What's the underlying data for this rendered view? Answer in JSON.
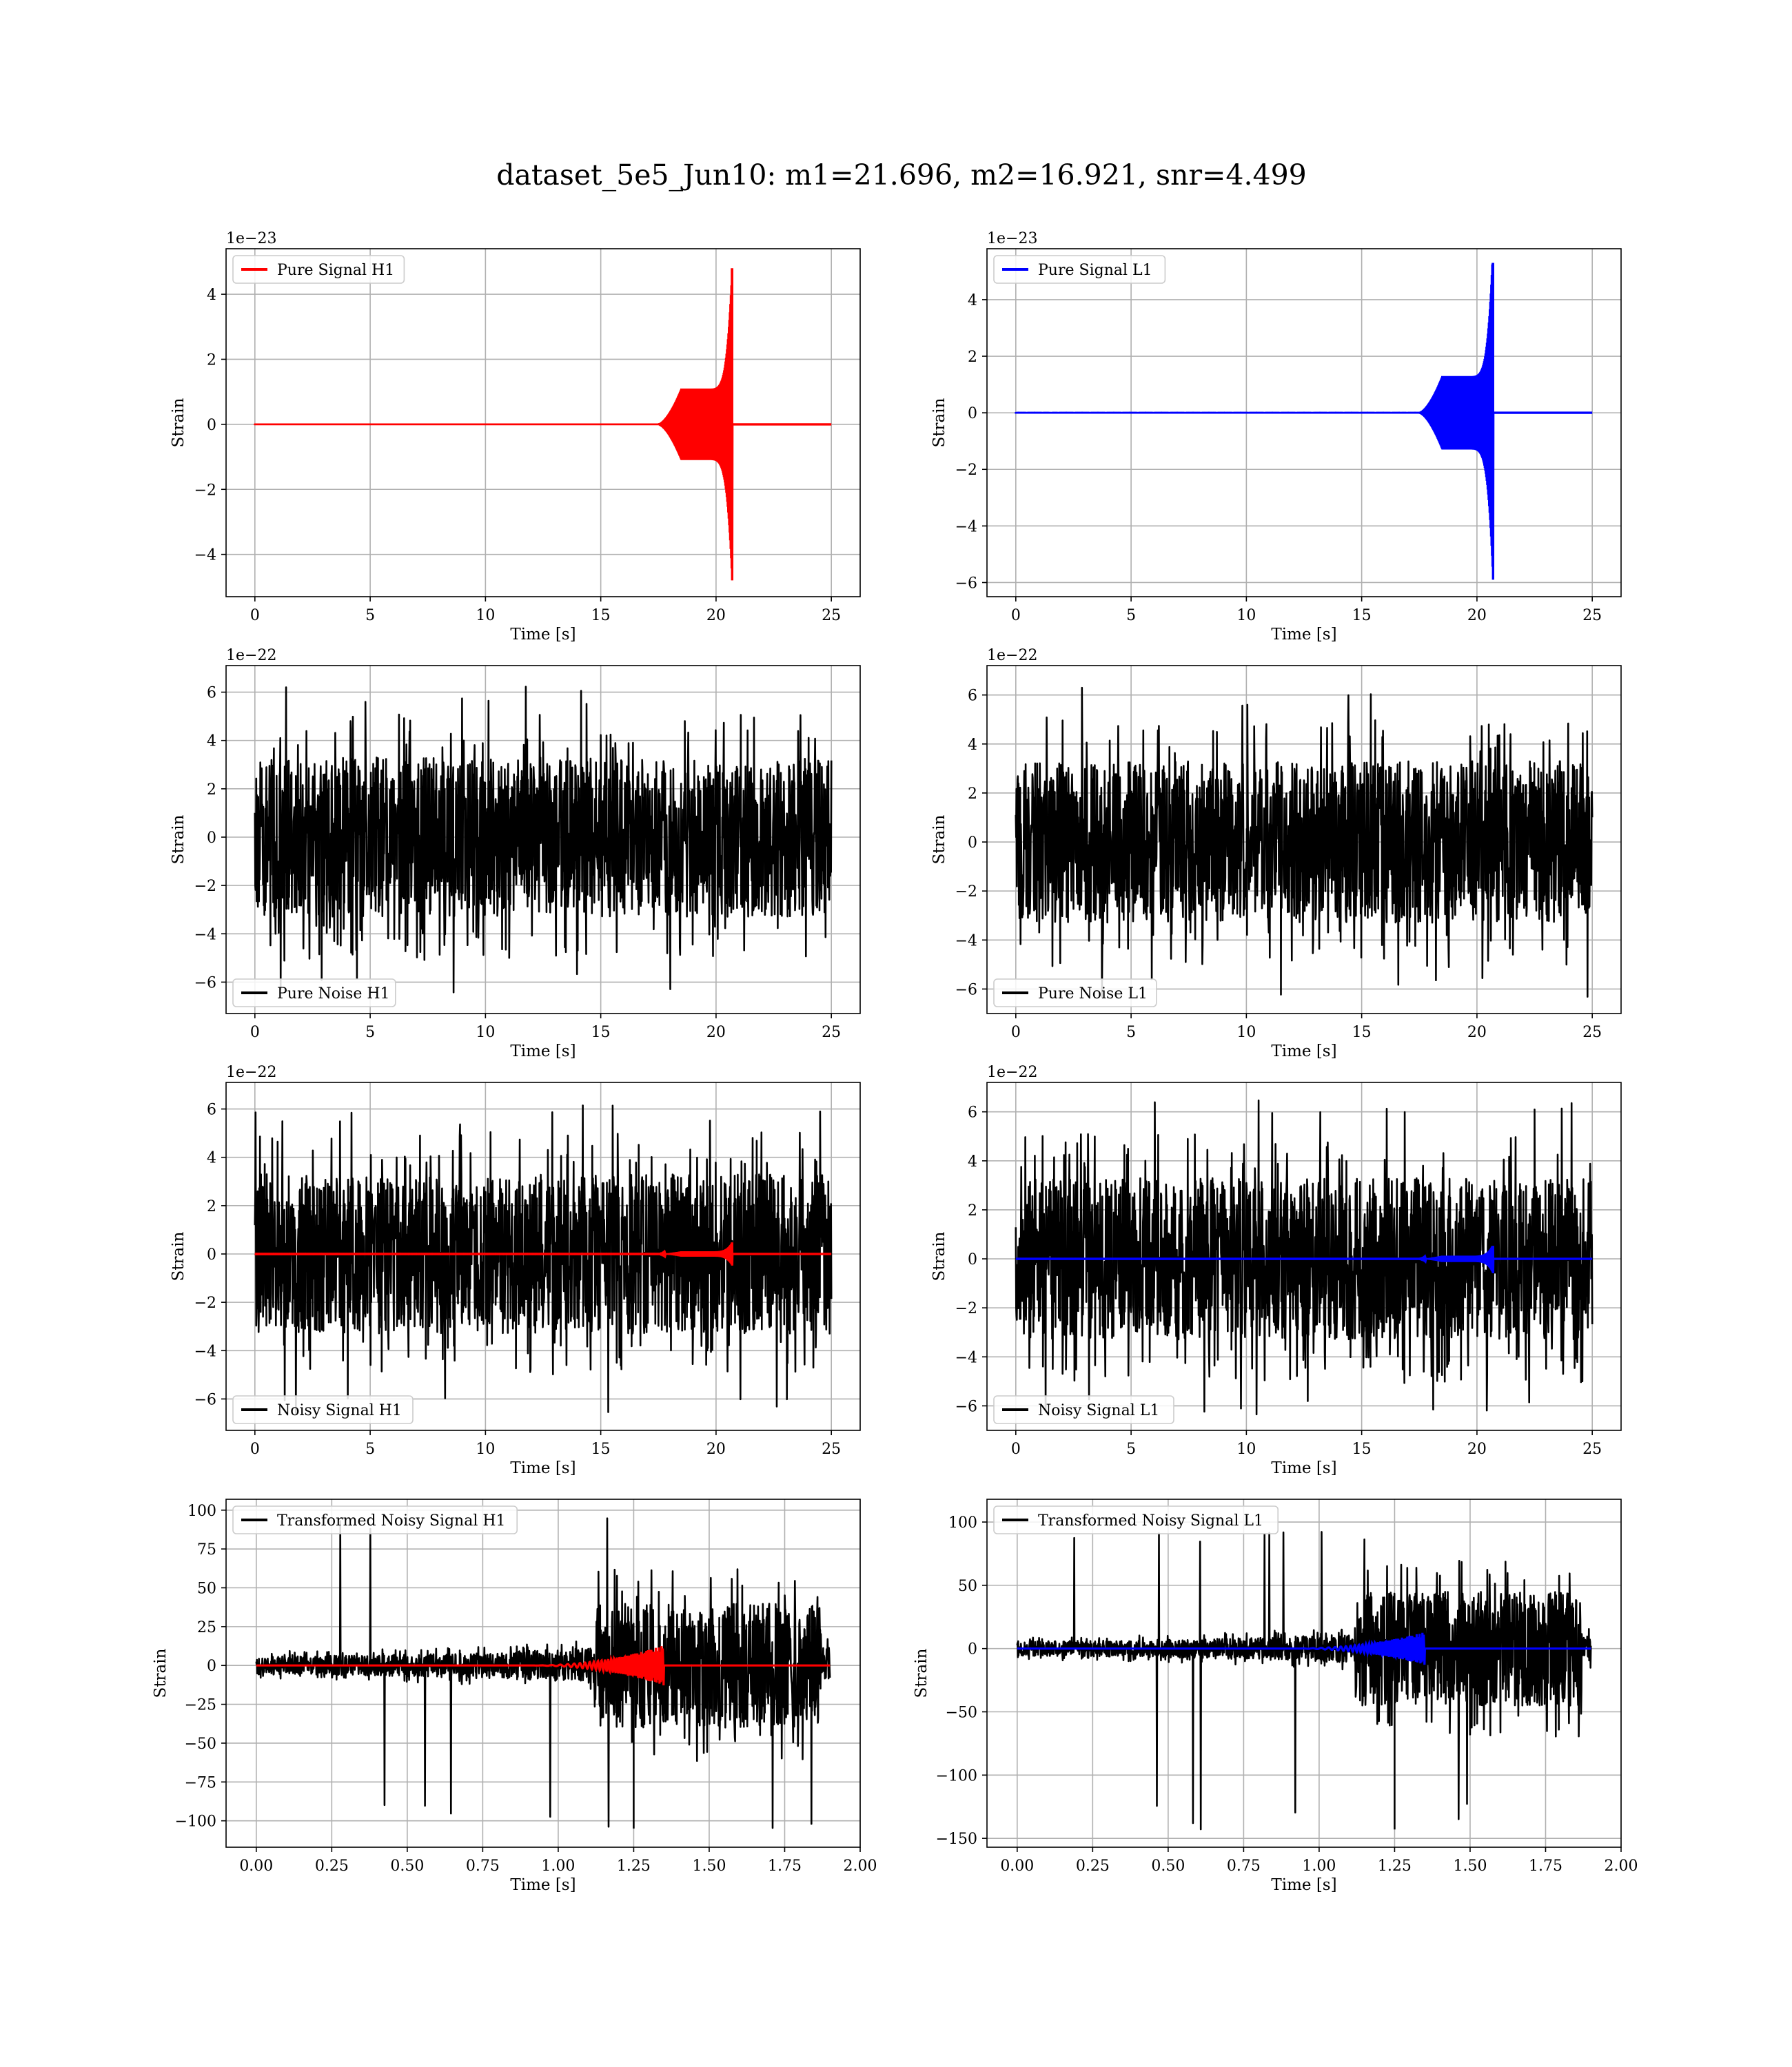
{
  "figure": {
    "title": "dataset_5e5_Jun10: m1=21.696, m2=16.921, snr=4.499"
  },
  "chart_data": [
    {
      "type": "line",
      "id": "pure-signal-h1",
      "xlabel": "Time [s]",
      "ylabel": "Strain",
      "offset_text": "1e−23",
      "xlim": [
        -1.25,
        26.25
      ],
      "ylim": [
        -5.3,
        5.4
      ],
      "xticks": [
        0,
        5,
        10,
        15,
        20,
        25
      ],
      "xtick_labels": [
        "0",
        "5",
        "10",
        "15",
        "20",
        "25"
      ],
      "yticks": [
        -4,
        -2,
        0,
        2,
        4
      ],
      "ytick_labels": [
        "−4",
        "−2",
        "0",
        "2",
        "4"
      ],
      "legend": "top-left",
      "grid": true,
      "series": [
        {
          "name": "Pure Signal H1",
          "color": "#ff0000",
          "kind": "chirp",
          "t_start": 0,
          "t_end": 25,
          "t_merger": 20.7,
          "peak_pos": 4.8,
          "peak_neg": -4.8,
          "onset": 17.5,
          "plateau_amp": 1.1
        }
      ]
    },
    {
      "type": "line",
      "id": "pure-signal-l1",
      "xlabel": "Time [s]",
      "ylabel": "Strain",
      "offset_text": "1e−23",
      "xlim": [
        -1.25,
        26.25
      ],
      "ylim": [
        -6.5,
        5.8
      ],
      "xticks": [
        0,
        5,
        10,
        15,
        20,
        25
      ],
      "xtick_labels": [
        "0",
        "5",
        "10",
        "15",
        "20",
        "25"
      ],
      "yticks": [
        -6,
        -4,
        -2,
        0,
        2,
        4
      ],
      "ytick_labels": [
        "−6",
        "−4",
        "−2",
        "0",
        "2",
        "4"
      ],
      "legend": "top-left",
      "grid": true,
      "series": [
        {
          "name": "Pure Signal L1",
          "color": "#0000ff",
          "kind": "chirp",
          "t_start": 0,
          "t_end": 25,
          "t_merger": 20.7,
          "peak_pos": 5.3,
          "peak_neg": -5.9,
          "onset": 17.5,
          "plateau_amp": 1.3
        }
      ]
    },
    {
      "type": "line",
      "id": "pure-noise-h1",
      "xlabel": "Time [s]",
      "ylabel": "Strain",
      "offset_text": "1e−22",
      "xlim": [
        -1.25,
        26.25
      ],
      "ylim": [
        -7.3,
        7.1
      ],
      "xticks": [
        0,
        5,
        10,
        15,
        20,
        25
      ],
      "xtick_labels": [
        "0",
        "5",
        "10",
        "15",
        "20",
        "25"
      ],
      "yticks": [
        -6,
        -4,
        -2,
        0,
        2,
        4,
        6
      ],
      "ytick_labels": [
        "−6",
        "−4",
        "−2",
        "0",
        "2",
        "4",
        "6"
      ],
      "legend": "bottom-left",
      "grid": true,
      "series": [
        {
          "name": "Pure Noise H1",
          "color": "#000000",
          "kind": "noise",
          "t_start": 0,
          "t_end": 25,
          "band": 3.3,
          "spike_max": 6.3,
          "spike_min": -6.6
        }
      ]
    },
    {
      "type": "line",
      "id": "pure-noise-l1",
      "xlabel": "Time [s]",
      "ylabel": "Strain",
      "offset_text": "1e−22",
      "xlim": [
        -1.25,
        26.25
      ],
      "ylim": [
        -7.0,
        7.2
      ],
      "xticks": [
        0,
        5,
        10,
        15,
        20,
        25
      ],
      "xtick_labels": [
        "0",
        "5",
        "10",
        "15",
        "20",
        "25"
      ],
      "yticks": [
        -6,
        -4,
        -2,
        0,
        2,
        4,
        6
      ],
      "ytick_labels": [
        "−6",
        "−4",
        "−2",
        "0",
        "2",
        "4",
        "6"
      ],
      "legend": "bottom-left",
      "grid": true,
      "series": [
        {
          "name": "Pure Noise L1",
          "color": "#000000",
          "kind": "noise",
          "t_start": 0,
          "t_end": 25,
          "band": 3.3,
          "spike_max": 6.5,
          "spike_min": -6.5
        }
      ]
    },
    {
      "type": "line",
      "id": "noisy-signal-h1",
      "xlabel": "Time [s]",
      "ylabel": "Strain",
      "offset_text": "1e−22",
      "xlim": [
        -1.25,
        26.25
      ],
      "ylim": [
        -7.3,
        7.1
      ],
      "xticks": [
        0,
        5,
        10,
        15,
        20,
        25
      ],
      "xtick_labels": [
        "0",
        "5",
        "10",
        "15",
        "20",
        "25"
      ],
      "yticks": [
        -6,
        -4,
        -2,
        0,
        2,
        4,
        6
      ],
      "ytick_labels": [
        "−6",
        "−4",
        "−2",
        "0",
        "2",
        "4",
        "6"
      ],
      "legend": "bottom-left",
      "grid": true,
      "series": [
        {
          "name": "Noisy Signal H1",
          "color": "#000000",
          "kind": "noise",
          "t_start": 0,
          "t_end": 25,
          "band": 3.3,
          "spike_max": 6.3,
          "spike_min": -6.6
        },
        {
          "color": "#ff0000",
          "kind": "chirp",
          "t_start": 0,
          "t_end": 25,
          "t_merger": 20.7,
          "peak_pos": 0.48,
          "peak_neg": -0.48,
          "onset": 17.5,
          "plateau_amp": 0.11
        }
      ]
    },
    {
      "type": "line",
      "id": "noisy-signal-l1",
      "xlabel": "Time [s]",
      "ylabel": "Strain",
      "offset_text": "1e−22",
      "xlim": [
        -1.25,
        26.25
      ],
      "ylim": [
        -7.0,
        7.2
      ],
      "xticks": [
        0,
        5,
        10,
        15,
        20,
        25
      ],
      "xtick_labels": [
        "0",
        "5",
        "10",
        "15",
        "20",
        "25"
      ],
      "yticks": [
        -6,
        -4,
        -2,
        0,
        2,
        4,
        6
      ],
      "ytick_labels": [
        "−6",
        "−4",
        "−2",
        "0",
        "2",
        "4",
        "6"
      ],
      "legend": "bottom-left",
      "grid": true,
      "series": [
        {
          "name": "Noisy Signal L1",
          "color": "#000000",
          "kind": "noise",
          "t_start": 0,
          "t_end": 25,
          "band": 3.3,
          "spike_max": 6.5,
          "spike_min": -6.5
        },
        {
          "color": "#0000ff",
          "kind": "chirp",
          "t_start": 0,
          "t_end": 25,
          "t_merger": 20.7,
          "peak_pos": 0.53,
          "peak_neg": -0.59,
          "onset": 17.5,
          "plateau_amp": 0.13
        }
      ]
    },
    {
      "type": "line",
      "id": "transformed-noisy-signal-h1",
      "xlabel": "Time [s]",
      "ylabel": "Strain",
      "offset_text": "",
      "xlim": [
        -0.1,
        2.0
      ],
      "ylim": [
        -117,
        107
      ],
      "xticks": [
        0,
        0.25,
        0.5,
        0.75,
        1.0,
        1.25,
        1.5,
        1.75,
        2.0
      ],
      "xtick_labels": [
        "0.00",
        "0.25",
        "0.50",
        "0.75",
        "1.00",
        "1.25",
        "1.50",
        "1.75",
        "2.00"
      ],
      "yticks": [
        -100,
        -75,
        -50,
        -25,
        0,
        25,
        50,
        75,
        100
      ],
      "ytick_labels": [
        "−100",
        "−75",
        "−50",
        "−25",
        "0",
        "25",
        "50",
        "75",
        "100"
      ],
      "legend": "top-left",
      "grid": true,
      "series": [
        {
          "name": "Transformed Noisy Signal H1",
          "color": "#000000",
          "kind": "tnoise",
          "t_start": 0,
          "t_end": 1.9,
          "t_jump": 1.12,
          "t_drop": 1.87,
          "pre_band": 6,
          "post_band": 40,
          "spike_max": 100,
          "spike_min": -105
        },
        {
          "color": "#ff0000",
          "kind": "tchirp",
          "t_start": 0,
          "t_end": 1.9,
          "t_merger": 1.35,
          "peak": 13,
          "onset": 0.9
        }
      ]
    },
    {
      "type": "line",
      "id": "transformed-noisy-signal-l1",
      "xlabel": "Time [s]",
      "ylabel": "Strain",
      "offset_text": "",
      "xlim": [
        -0.1,
        2.0
      ],
      "ylim": [
        -157,
        118
      ],
      "xticks": [
        0,
        0.25,
        0.5,
        0.75,
        1.0,
        1.25,
        1.5,
        1.75,
        2.0
      ],
      "xtick_labels": [
        "0.00",
        "0.25",
        "0.50",
        "0.75",
        "1.00",
        "1.25",
        "1.50",
        "1.75",
        "2.00"
      ],
      "yticks": [
        -150,
        -100,
        -50,
        0,
        50,
        100
      ],
      "ytick_labels": [
        "−150",
        "−100",
        "−50",
        "0",
        "50",
        "100"
      ],
      "legend": "top-left",
      "grid": true,
      "series": [
        {
          "name": "Transformed Noisy Signal L1",
          "color": "#000000",
          "kind": "tnoise",
          "t_start": 0,
          "t_end": 1.9,
          "t_jump": 1.12,
          "t_drop": 1.87,
          "pre_band": 6,
          "post_band": 45,
          "spike_max": 96,
          "spike_min": -143
        },
        {
          "color": "#0000ff",
          "kind": "tchirp",
          "t_start": 0,
          "t_end": 1.9,
          "t_merger": 1.35,
          "peak": 13,
          "onset": 0.9
        }
      ]
    }
  ]
}
